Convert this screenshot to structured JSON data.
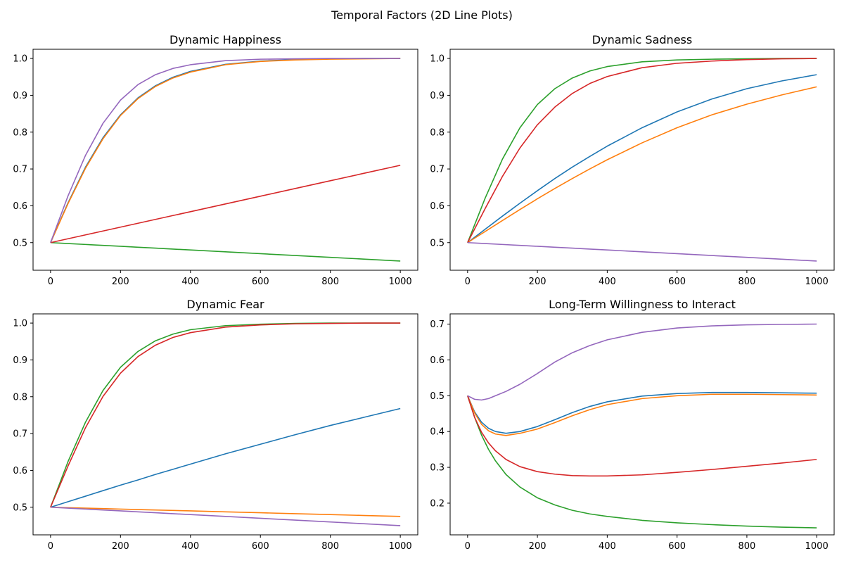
{
  "figure_title": "Temporal Factors (2D Line Plots)",
  "chart_data": [
    {
      "type": "line",
      "title": "Dynamic Happiness",
      "xlabel": "",
      "ylabel": "",
      "xlim": [
        -50,
        1050
      ],
      "ylim": [
        0.425,
        1.025
      ],
      "xticks": [
        0,
        200,
        400,
        600,
        800,
        1000
      ],
      "yticks": [
        0.5,
        0.6,
        0.7,
        0.8,
        0.9,
        1.0
      ],
      "ytick_labels": [
        "0.5",
        "0.6",
        "0.7",
        "0.8",
        "0.9",
        "1.0"
      ],
      "grid": false,
      "x": [
        0,
        50,
        100,
        150,
        200,
        250,
        300,
        350,
        400,
        500,
        600,
        700,
        800,
        900,
        1000
      ],
      "series": [
        {
          "color": "#1f77b4",
          "values": [
            0.5,
            0.608,
            0.705,
            0.785,
            0.847,
            0.893,
            0.926,
            0.949,
            0.965,
            0.984,
            0.993,
            0.997,
            0.999,
            1.0,
            1.0
          ]
        },
        {
          "color": "#ff7f0e",
          "values": [
            0.5,
            0.606,
            0.702,
            0.782,
            0.845,
            0.891,
            0.924,
            0.947,
            0.963,
            0.983,
            0.992,
            0.996,
            0.998,
            0.999,
            1.0
          ]
        },
        {
          "color": "#2ca02c",
          "values": [
            0.5,
            0.4975,
            0.495,
            0.4925,
            0.49,
            0.4875,
            0.485,
            0.4825,
            0.48,
            0.475,
            0.47,
            0.465,
            0.46,
            0.455,
            0.45
          ]
        },
        {
          "color": "#d62728",
          "values": [
            0.5,
            0.5105,
            0.521,
            0.5315,
            0.542,
            0.5525,
            0.563,
            0.5735,
            0.584,
            0.605,
            0.626,
            0.647,
            0.668,
            0.689,
            0.71
          ]
        },
        {
          "color": "#9467bd",
          "values": [
            0.5,
            0.627,
            0.737,
            0.824,
            0.887,
            0.929,
            0.956,
            0.973,
            0.983,
            0.994,
            0.998,
            0.999,
            1.0,
            1.0,
            1.0
          ]
        }
      ]
    },
    {
      "type": "line",
      "title": "Dynamic Sadness",
      "xlabel": "",
      "ylabel": "",
      "xlim": [
        -50,
        1050
      ],
      "ylim": [
        0.425,
        1.025
      ],
      "xticks": [
        0,
        200,
        400,
        600,
        800,
        1000
      ],
      "yticks": [
        0.5,
        0.6,
        0.7,
        0.8,
        0.9,
        1.0
      ],
      "ytick_labels": [
        "0.5",
        "0.6",
        "0.7",
        "0.8",
        "0.9",
        "1.0"
      ],
      "grid": false,
      "x": [
        0,
        50,
        100,
        150,
        200,
        250,
        300,
        350,
        400,
        500,
        600,
        700,
        800,
        900,
        1000
      ],
      "series": [
        {
          "color": "#1f77b4",
          "values": [
            0.5,
            0.536,
            0.572,
            0.607,
            0.641,
            0.674,
            0.705,
            0.734,
            0.762,
            0.812,
            0.855,
            0.89,
            0.918,
            0.939,
            0.956
          ]
        },
        {
          "color": "#ff7f0e",
          "values": [
            0.5,
            0.53,
            0.56,
            0.59,
            0.619,
            0.647,
            0.674,
            0.7,
            0.725,
            0.771,
            0.812,
            0.847,
            0.876,
            0.901,
            0.923
          ]
        },
        {
          "color": "#2ca02c",
          "values": [
            0.5,
            0.62,
            0.727,
            0.812,
            0.875,
            0.918,
            0.947,
            0.966,
            0.978,
            0.991,
            0.996,
            0.998,
            0.999,
            1.0,
            1.0
          ]
        },
        {
          "color": "#d62728",
          "values": [
            0.5,
            0.592,
            0.68,
            0.757,
            0.82,
            0.868,
            0.905,
            0.932,
            0.951,
            0.975,
            0.987,
            0.993,
            0.997,
            0.999,
            1.0
          ]
        },
        {
          "color": "#9467bd",
          "values": [
            0.5,
            0.4975,
            0.495,
            0.4925,
            0.49,
            0.4875,
            0.485,
            0.4825,
            0.48,
            0.475,
            0.47,
            0.465,
            0.46,
            0.455,
            0.45
          ]
        }
      ]
    },
    {
      "type": "line",
      "title": "Dynamic Fear",
      "xlabel": "",
      "ylabel": "",
      "xlim": [
        -50,
        1050
      ],
      "ylim": [
        0.425,
        1.025
      ],
      "xticks": [
        0,
        200,
        400,
        600,
        800,
        1000
      ],
      "yticks": [
        0.5,
        0.6,
        0.7,
        0.8,
        0.9,
        1.0
      ],
      "ytick_labels": [
        "0.5",
        "0.6",
        "0.7",
        "0.8",
        "0.9",
        "1.0"
      ],
      "grid": false,
      "x": [
        0,
        50,
        100,
        150,
        200,
        250,
        300,
        350,
        400,
        500,
        600,
        700,
        800,
        900,
        1000
      ],
      "series": [
        {
          "color": "#1f77b4",
          "values": [
            0.5,
            0.515,
            0.53,
            0.545,
            0.56,
            0.574,
            0.589,
            0.603,
            0.617,
            0.645,
            0.671,
            0.697,
            0.722,
            0.745,
            0.768
          ]
        },
        {
          "color": "#ff7f0e",
          "values": [
            0.5,
            0.49875,
            0.4975,
            0.49625,
            0.495,
            0.49375,
            0.4925,
            0.49125,
            0.49,
            0.4875,
            0.485,
            0.4825,
            0.48,
            0.4775,
            0.475
          ]
        },
        {
          "color": "#2ca02c",
          "values": [
            0.5,
            0.624,
            0.731,
            0.817,
            0.88,
            0.923,
            0.952,
            0.97,
            0.982,
            0.993,
            0.997,
            0.999,
            1.0,
            1.0,
            1.0
          ]
        },
        {
          "color": "#d62728",
          "values": [
            0.5,
            0.612,
            0.716,
            0.801,
            0.864,
            0.909,
            0.94,
            0.961,
            0.974,
            0.989,
            0.995,
            0.998,
            0.999,
            1.0,
            1.0
          ]
        },
        {
          "color": "#9467bd",
          "values": [
            0.5,
            0.4975,
            0.495,
            0.4925,
            0.49,
            0.4875,
            0.485,
            0.4825,
            0.48,
            0.475,
            0.47,
            0.465,
            0.46,
            0.455,
            0.45
          ]
        }
      ]
    },
    {
      "type": "line",
      "title": "Long-Term Willingness to Interact",
      "xlabel": "",
      "ylabel": "",
      "xlim": [
        -50,
        1050
      ],
      "ylim": [
        0.1115,
        0.7285
      ],
      "xticks": [
        0,
        200,
        400,
        600,
        800,
        1000
      ],
      "yticks": [
        0.2,
        0.3,
        0.4,
        0.5,
        0.6,
        0.7
      ],
      "ytick_labels": [
        "0.2",
        "0.3",
        "0.4",
        "0.5",
        "0.6",
        "0.7"
      ],
      "grid": false,
      "x": [
        0,
        20,
        40,
        60,
        80,
        110,
        150,
        200,
        250,
        300,
        350,
        400,
        500,
        600,
        700,
        800,
        900,
        1000
      ],
      "series": [
        {
          "color": "#1f77b4",
          "values": [
            0.5,
            0.455,
            0.426,
            0.409,
            0.4,
            0.395,
            0.4,
            0.414,
            0.433,
            0.453,
            0.47,
            0.483,
            0.499,
            0.506,
            0.509,
            0.509,
            0.508,
            0.507
          ]
        },
        {
          "color": "#ff7f0e",
          "values": [
            0.5,
            0.452,
            0.42,
            0.402,
            0.393,
            0.389,
            0.395,
            0.407,
            0.425,
            0.444,
            0.461,
            0.475,
            0.492,
            0.5,
            0.504,
            0.504,
            0.503,
            0.502
          ]
        },
        {
          "color": "#2ca02c",
          "values": [
            0.5,
            0.44,
            0.39,
            0.35,
            0.318,
            0.28,
            0.245,
            0.215,
            0.195,
            0.18,
            0.17,
            0.163,
            0.152,
            0.145,
            0.14,
            0.136,
            0.133,
            0.131
          ]
        },
        {
          "color": "#d62728",
          "values": [
            0.5,
            0.44,
            0.398,
            0.368,
            0.346,
            0.322,
            0.302,
            0.288,
            0.281,
            0.277,
            0.276,
            0.276,
            0.279,
            0.286,
            0.294,
            0.303,
            0.312,
            0.322
          ]
        },
        {
          "color": "#9467bd",
          "values": [
            0.5,
            0.49,
            0.488,
            0.492,
            0.5,
            0.512,
            0.532,
            0.562,
            0.594,
            0.62,
            0.64,
            0.656,
            0.677,
            0.689,
            0.695,
            0.698,
            0.699,
            0.7
          ]
        }
      ]
    }
  ]
}
